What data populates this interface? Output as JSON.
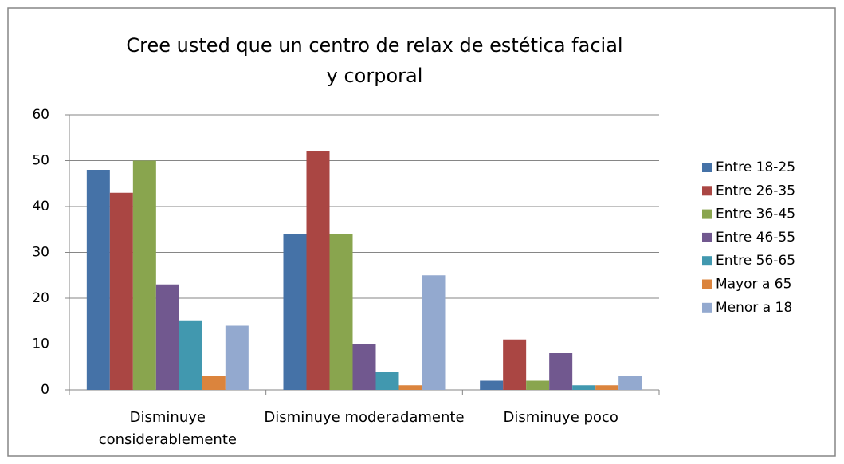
{
  "chart_data": {
    "type": "bar",
    "title": "Cree usted que un centro de relax de estética facial y corporal",
    "categories": [
      "Disminuye considerablemente",
      "Disminuye moderadamente",
      "Disminuye poco"
    ],
    "series": [
      {
        "name": "Entre 18-25",
        "color": "#4572a7",
        "values": [
          48,
          34,
          2
        ]
      },
      {
        "name": "Entre 26-35",
        "color": "#aa4643",
        "values": [
          43,
          52,
          11
        ]
      },
      {
        "name": "Entre 36-45",
        "color": "#89a54e",
        "values": [
          50,
          34,
          2
        ]
      },
      {
        "name": "Entre 46-55",
        "color": "#71588f",
        "values": [
          23,
          10,
          8
        ]
      },
      {
        "name": "Entre 56-65",
        "color": "#4198af",
        "values": [
          15,
          4,
          1
        ]
      },
      {
        "name": "Mayor a 65",
        "color": "#db843d",
        "values": [
          3,
          1,
          1
        ]
      },
      {
        "name": "Menor a 18",
        "color": "#93a9cf",
        "values": [
          14,
          25,
          3
        ]
      }
    ],
    "ylim": [
      0,
      60
    ],
    "yticks": [
      0,
      10,
      20,
      30,
      40,
      50,
      60
    ],
    "grid": true,
    "legend": "right"
  }
}
